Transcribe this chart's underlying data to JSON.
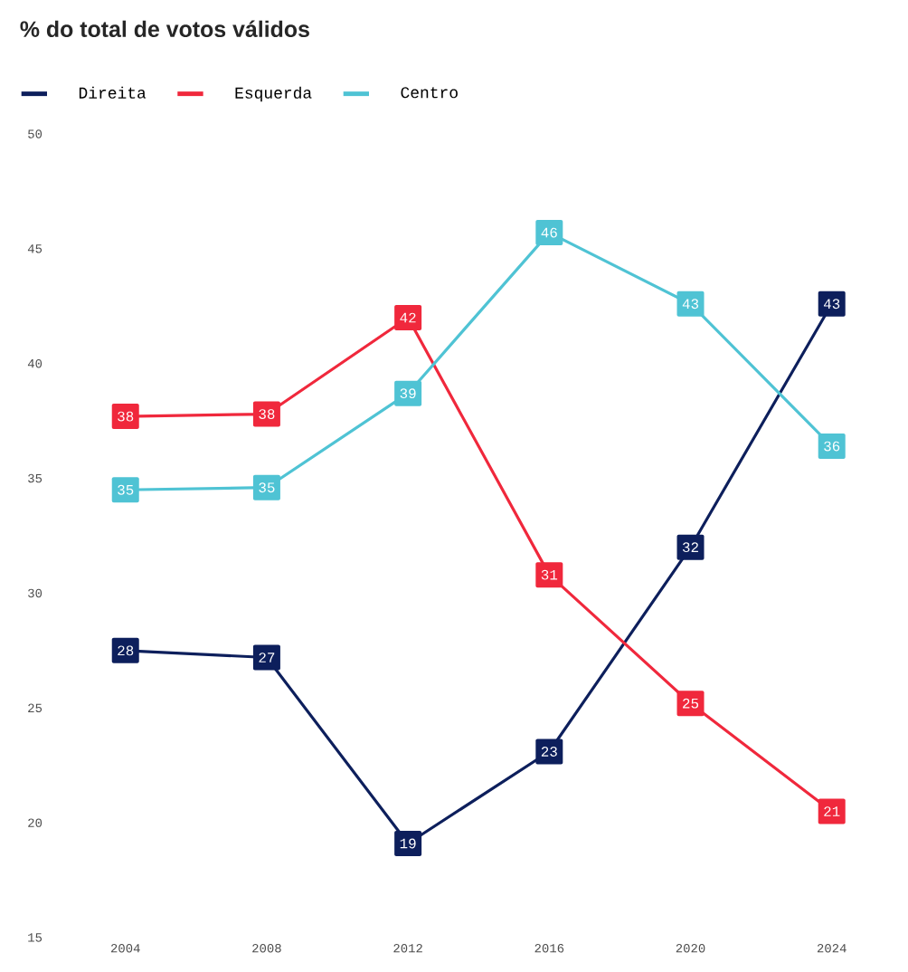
{
  "chart_data": {
    "type": "line",
    "title": "% do total de votos válidos",
    "categories": [
      "2004",
      "2008",
      "2012",
      "2016",
      "2020",
      "2024"
    ],
    "series": [
      {
        "name": "Direita",
        "color": "#0d1f5c",
        "values": [
          27.5,
          27.2,
          19.1,
          23.1,
          32.0,
          42.6
        ],
        "value_labels": [
          "28",
          "27",
          "19",
          "23",
          "32",
          "43"
        ]
      },
      {
        "name": "Esquerda",
        "color": "#f0283c",
        "values": [
          37.7,
          37.8,
          42.0,
          30.8,
          25.2,
          20.5
        ],
        "value_labels": [
          "38",
          "38",
          "42",
          "31",
          "25",
          "21"
        ]
      },
      {
        "name": "Centro",
        "color": "#4fc3d4",
        "values": [
          34.5,
          34.6,
          38.7,
          45.7,
          42.6,
          36.4
        ],
        "value_labels": [
          "35",
          "35",
          "39",
          "46",
          "43",
          "36"
        ]
      }
    ],
    "ylim": [
      15,
      50
    ],
    "yticks": [
      15,
      20,
      25,
      30,
      35,
      40,
      45,
      50
    ],
    "grid": false,
    "legend": "top left",
    "marker": "square",
    "line_style": "solid"
  }
}
